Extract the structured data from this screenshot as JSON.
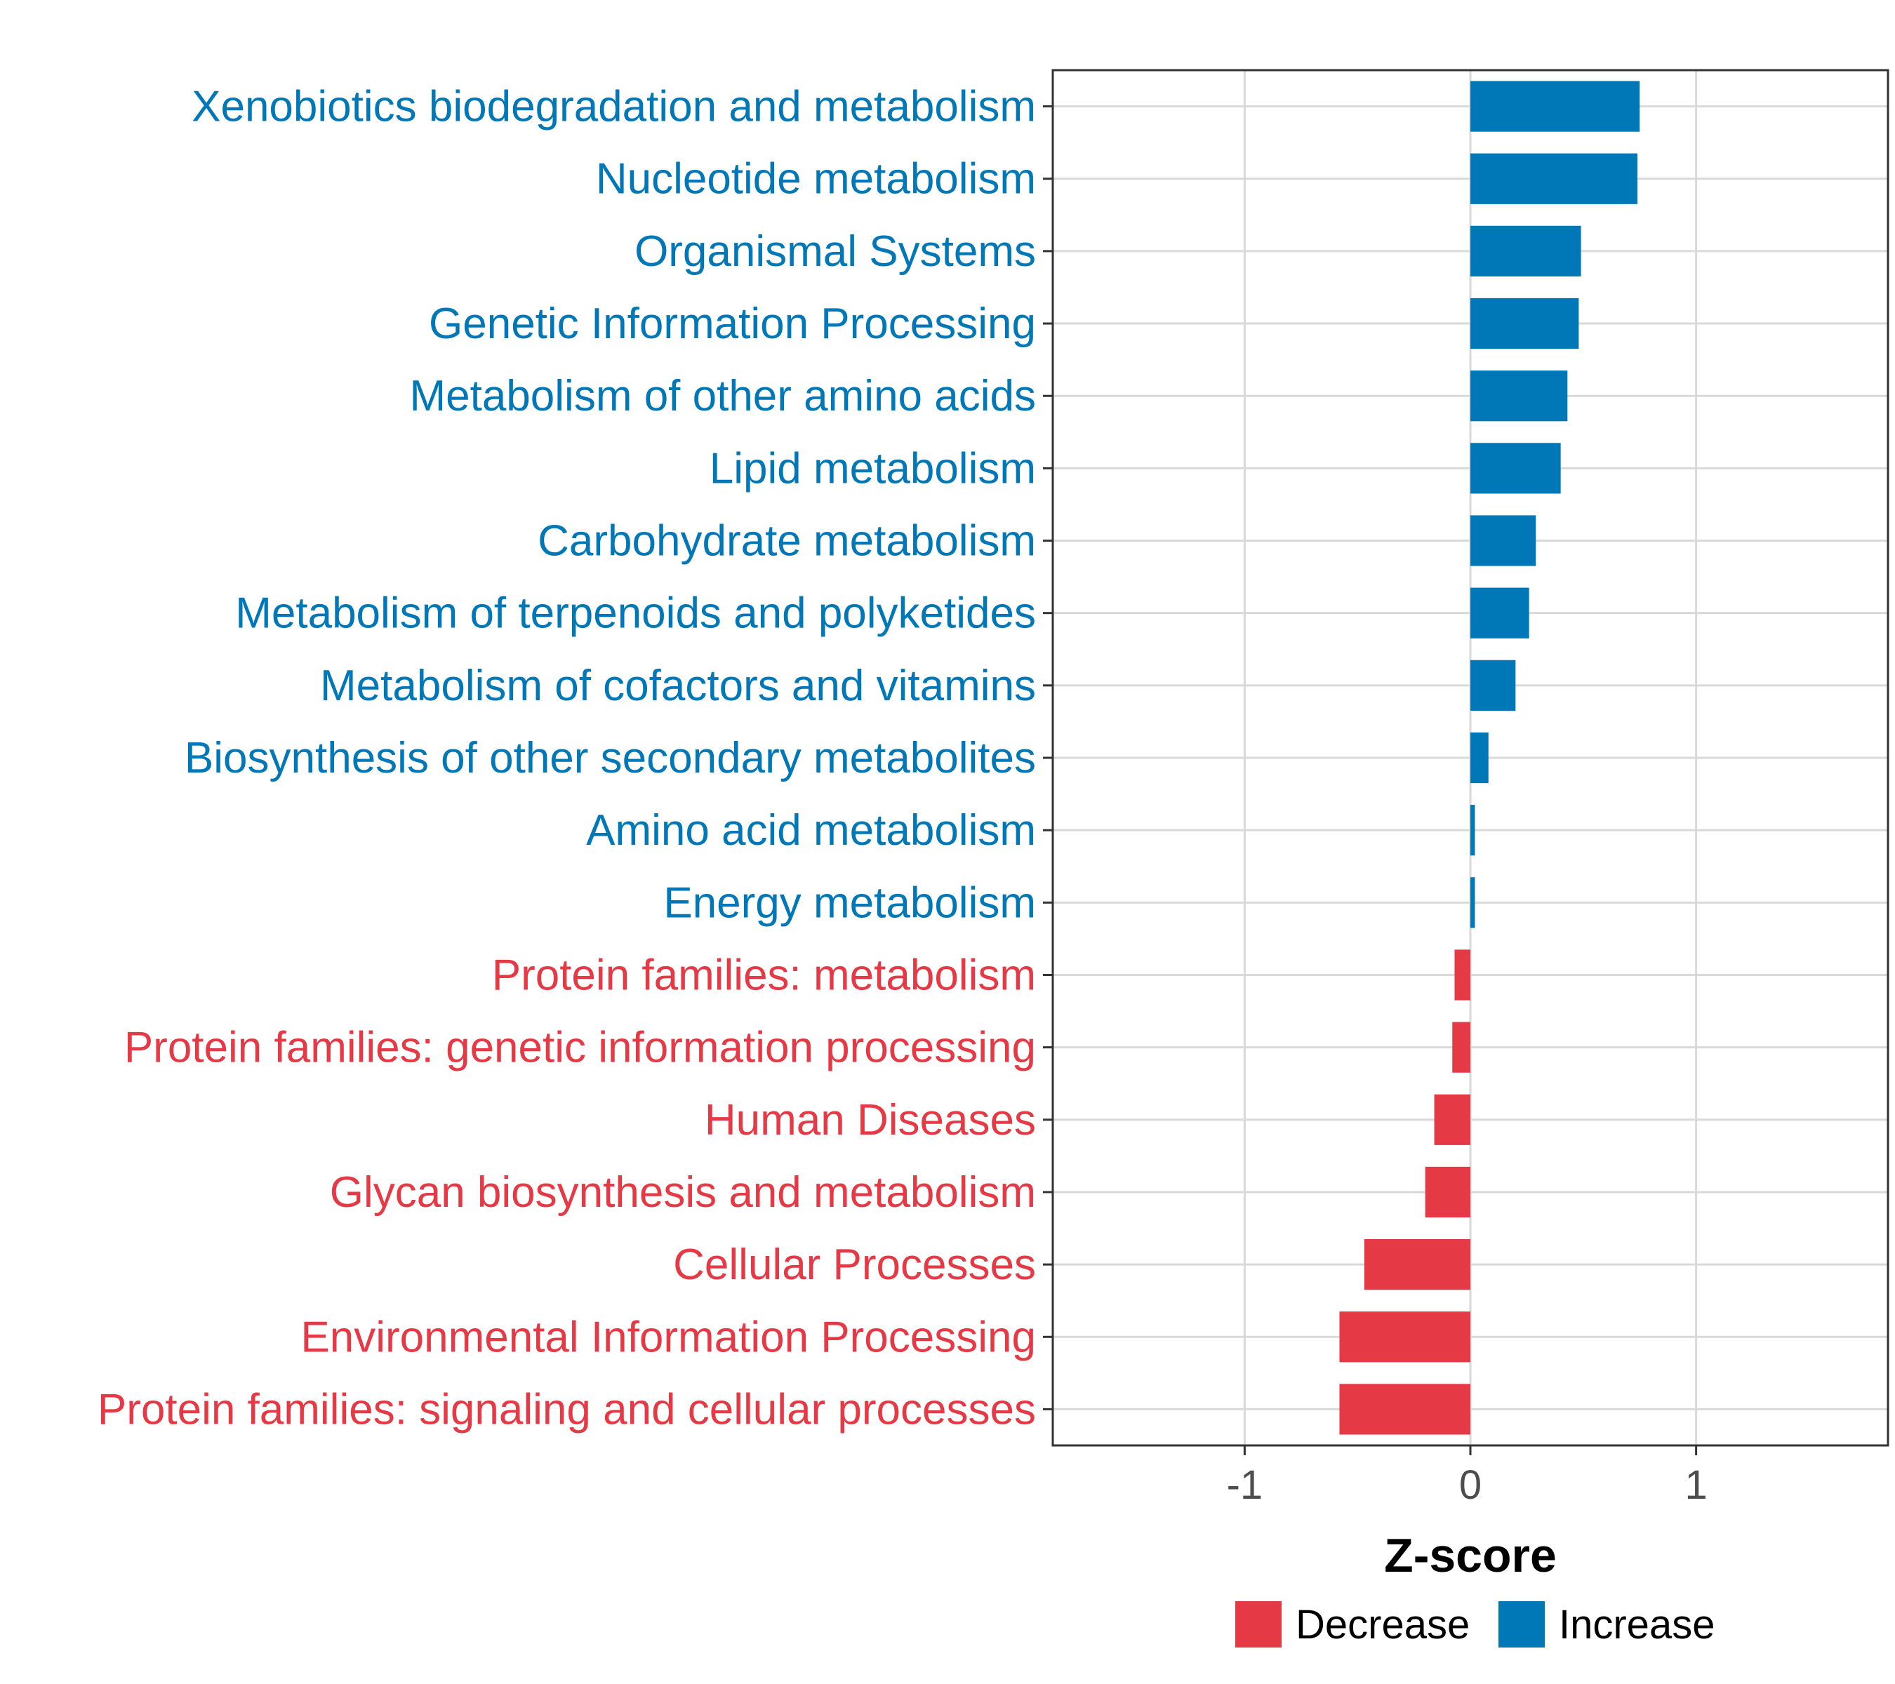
{
  "chart_data": {
    "type": "bar",
    "orientation": "horizontal",
    "title": "",
    "xlabel": "Z-score",
    "ylabel": "",
    "xlim": [
      -1.85,
      1.85
    ],
    "xticks": [
      {
        "value": -1,
        "label": "-1"
      },
      {
        "value": 0,
        "label": "0"
      },
      {
        "value": 1,
        "label": "1"
      }
    ],
    "grid": true,
    "categories": [
      "Xenobiotics biodegradation and metabolism",
      "Nucleotide metabolism",
      "Organismal Systems",
      "Genetic Information Processing",
      "Metabolism of other amino acids",
      "Lipid metabolism",
      "Carbohydrate metabolism",
      "Metabolism of terpenoids and polyketides",
      "Metabolism of cofactors and vitamins",
      "Biosynthesis of other secondary metabolites",
      "Amino acid metabolism",
      "Energy metabolism",
      "Protein families: metabolism",
      "Protein families: genetic information processing",
      "Human Diseases",
      "Glycan biosynthesis and metabolism",
      "Cellular Processes",
      "Environmental Information Processing",
      "Protein families: signaling and cellular processes"
    ],
    "values": [
      0.75,
      0.74,
      0.49,
      0.48,
      0.43,
      0.4,
      0.29,
      0.26,
      0.2,
      0.08,
      0.02,
      0.02,
      -0.07,
      -0.08,
      -0.16,
      -0.2,
      -0.47,
      -0.58,
      -0.58
    ],
    "legend": {
      "position": "bottom",
      "entries": [
        {
          "label": "Decrease",
          "color": "#e63946"
        },
        {
          "label": "Increase",
          "color": "#0077b6"
        }
      ]
    },
    "colors": {
      "increase": "#0077b6",
      "decrease": "#e63946"
    }
  }
}
